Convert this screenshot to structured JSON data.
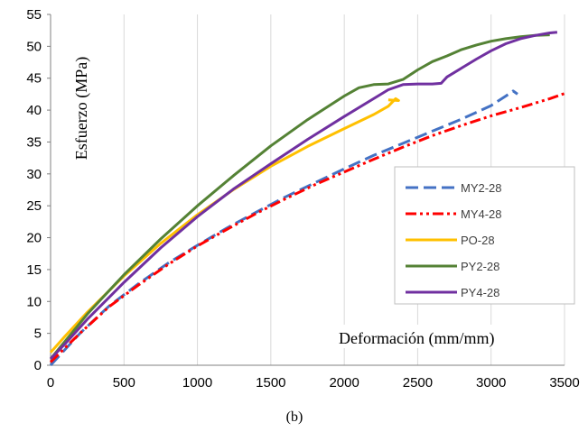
{
  "chart_data": {
    "type": "line",
    "title": "",
    "caption": "(b)",
    "xlabel": "Deformación (mm/mm)",
    "ylabel": "Esfuerzo (MPa)",
    "xlim": [
      0,
      3500
    ],
    "ylim": [
      0,
      55
    ],
    "xticks": [
      0,
      500,
      1000,
      1500,
      2000,
      2500,
      3000,
      3500
    ],
    "yticks": [
      0,
      5,
      10,
      15,
      20,
      25,
      30,
      35,
      40,
      45,
      50,
      55
    ],
    "grid": {
      "vertical": true,
      "horizontal": false
    },
    "legend": {
      "position": "right"
    },
    "series": [
      {
        "name": "MY2-28",
        "color": "#4472C4",
        "dash": "long-dash",
        "points": [
          [
            0,
            0
          ],
          [
            200,
            5
          ],
          [
            400,
            9.3
          ],
          [
            600,
            12.8
          ],
          [
            800,
            16
          ],
          [
            1000,
            18.8
          ],
          [
            1200,
            21.5
          ],
          [
            1400,
            24
          ],
          [
            1600,
            26.4
          ],
          [
            1800,
            28.6
          ],
          [
            2000,
            30.8
          ],
          [
            2200,
            32.9
          ],
          [
            2400,
            34.8
          ],
          [
            2600,
            36.7
          ],
          [
            2800,
            38.6
          ],
          [
            3000,
            40.7
          ],
          [
            3100,
            42.2
          ],
          [
            3150,
            43
          ],
          [
            3180,
            42.5
          ]
        ]
      },
      {
        "name": "MY4-28",
        "color": "#FF0000",
        "dash": "dash-dot-dot",
        "points": [
          [
            0,
            0.5
          ],
          [
            200,
            5
          ],
          [
            400,
            9.2
          ],
          [
            600,
            12.6
          ],
          [
            800,
            15.8
          ],
          [
            1000,
            18.7
          ],
          [
            1200,
            21.3
          ],
          [
            1400,
            23.8
          ],
          [
            1600,
            26.1
          ],
          [
            1800,
            28.3
          ],
          [
            2000,
            30.3
          ],
          [
            2200,
            32.3
          ],
          [
            2400,
            34.2
          ],
          [
            2600,
            36
          ],
          [
            2800,
            37.6
          ],
          [
            3000,
            39.1
          ],
          [
            3200,
            40.4
          ],
          [
            3400,
            41.8
          ],
          [
            3500,
            42.6
          ]
        ]
      },
      {
        "name": "PO-28",
        "color": "#FFC000",
        "dash": "solid",
        "points": [
          [
            0,
            2
          ],
          [
            100,
            4.6
          ],
          [
            250,
            8.3
          ],
          [
            500,
            14
          ],
          [
            750,
            19.1
          ],
          [
            1000,
            23.6
          ],
          [
            1250,
            27.6
          ],
          [
            1500,
            31.2
          ],
          [
            1750,
            34.3
          ],
          [
            2000,
            37.1
          ],
          [
            2200,
            39.3
          ],
          [
            2300,
            40.6
          ],
          [
            2350,
            41.8
          ],
          [
            2370,
            41.5
          ],
          [
            2300,
            41.6
          ]
        ]
      },
      {
        "name": "PY2-28",
        "color": "#548235",
        "dash": "solid",
        "points": [
          [
            0,
            1
          ],
          [
            100,
            3.8
          ],
          [
            250,
            8
          ],
          [
            500,
            14.2
          ],
          [
            750,
            19.8
          ],
          [
            1000,
            25
          ],
          [
            1250,
            29.8
          ],
          [
            1500,
            34.4
          ],
          [
            1750,
            38.5
          ],
          [
            2000,
            42.2
          ],
          [
            2100,
            43.5
          ],
          [
            2200,
            44
          ],
          [
            2300,
            44.1
          ],
          [
            2400,
            44.8
          ],
          [
            2500,
            46.3
          ],
          [
            2600,
            47.6
          ],
          [
            2700,
            48.5
          ],
          [
            2800,
            49.5
          ],
          [
            2900,
            50.2
          ],
          [
            3000,
            50.8
          ],
          [
            3100,
            51.2
          ],
          [
            3200,
            51.5
          ],
          [
            3300,
            51.7
          ],
          [
            3400,
            51.8
          ]
        ]
      },
      {
        "name": "PY4-28",
        "color": "#7030A0",
        "dash": "solid",
        "points": [
          [
            0,
            1
          ],
          [
            100,
            3.4
          ],
          [
            250,
            7.2
          ],
          [
            500,
            13
          ],
          [
            750,
            18.4
          ],
          [
            1000,
            23.3
          ],
          [
            1250,
            27.7
          ],
          [
            1500,
            31.6
          ],
          [
            1750,
            35.4
          ],
          [
            2000,
            39
          ],
          [
            2200,
            41.8
          ],
          [
            2300,
            43.2
          ],
          [
            2400,
            44
          ],
          [
            2500,
            44.1
          ],
          [
            2600,
            44.1
          ],
          [
            2660,
            44.2
          ],
          [
            2700,
            45.2
          ],
          [
            2800,
            46.6
          ],
          [
            2900,
            48
          ],
          [
            3000,
            49.3
          ],
          [
            3100,
            50.4
          ],
          [
            3200,
            51.2
          ],
          [
            3300,
            51.7
          ],
          [
            3400,
            52.1
          ],
          [
            3450,
            52.2
          ]
        ]
      }
    ]
  }
}
